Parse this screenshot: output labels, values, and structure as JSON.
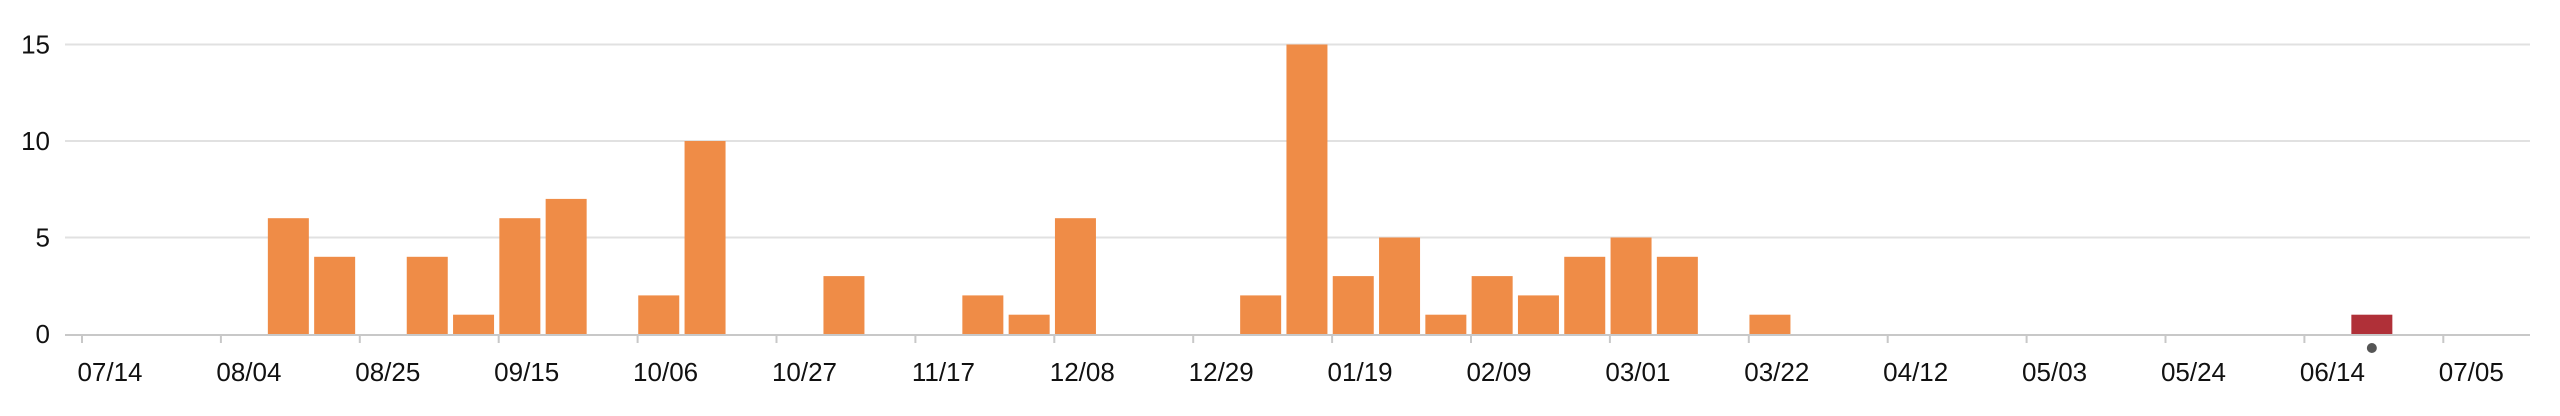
{
  "chart_data": {
    "type": "bar",
    "title": "",
    "xlabel": "",
    "ylabel": "",
    "ylim": [
      0,
      16
    ],
    "yticks": [
      0,
      5,
      10,
      15
    ],
    "grid": true,
    "legend": "none",
    "colors": {
      "bar": "#ef8c47",
      "highlight": "#b03038",
      "marker": "#555555",
      "grid": "#e1e1e1",
      "axis": "#c8c8c8",
      "text": "#111111"
    },
    "x_tick_labels": [
      "07/14",
      "08/04",
      "08/25",
      "09/15",
      "10/06",
      "10/27",
      "11/17",
      "12/08",
      "12/29",
      "01/19",
      "02/09",
      "03/01",
      "03/22",
      "04/12",
      "05/03",
      "05/24",
      "06/14",
      "07/05"
    ],
    "categories": [
      "07/14",
      "07/21",
      "07/28",
      "08/04",
      "08/11",
      "08/18",
      "08/25",
      "09/01",
      "09/08",
      "09/15",
      "09/22",
      "09/29",
      "10/06",
      "10/13",
      "10/20",
      "10/27",
      "11/03",
      "11/10",
      "11/17",
      "11/24",
      "12/01",
      "12/08",
      "12/15",
      "12/22",
      "12/29",
      "01/05",
      "01/12",
      "01/19",
      "01/26",
      "02/02",
      "02/09",
      "02/16",
      "02/23",
      "03/01",
      "03/08",
      "03/15",
      "03/22",
      "03/29",
      "04/05",
      "04/12",
      "04/19",
      "04/26",
      "05/03",
      "05/10",
      "05/17",
      "05/24",
      "05/31",
      "06/07",
      "06/14",
      "06/21",
      "06/28",
      "07/05"
    ],
    "values": [
      0,
      0,
      0,
      0,
      6,
      4,
      0,
      4,
      1,
      6,
      7,
      0,
      2,
      10,
      0,
      0,
      3,
      0,
      0,
      2,
      1,
      6,
      0,
      0,
      0,
      2,
      15,
      3,
      5,
      1,
      3,
      2,
      4,
      5,
      4,
      0,
      1,
      0,
      0,
      0,
      0,
      0,
      0,
      0,
      0,
      0,
      0,
      0,
      0,
      1,
      0,
      0
    ],
    "highlight_category": "06/21",
    "marker_category": "06/21"
  }
}
